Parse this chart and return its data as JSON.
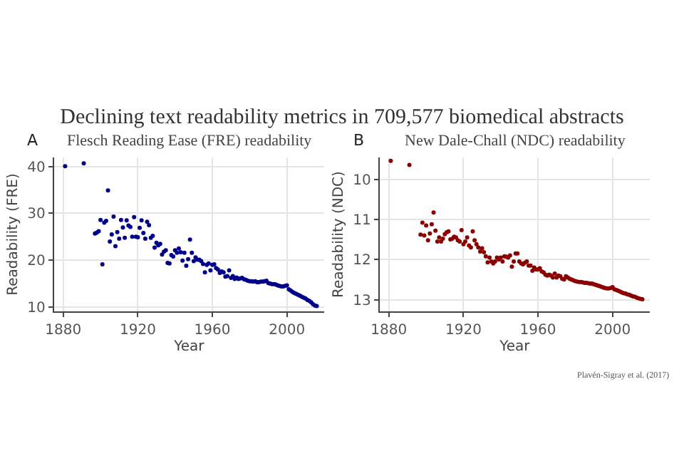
{
  "chart_data": [
    {
      "type": "scatter",
      "title": "Declining text readability metrics in 709,577 biomedical abstracts",
      "subtitle": "Flesch Reading Ease (FRE) readability",
      "xlabel": "Year",
      "ylabel": "Readability (FRE)",
      "annotations": [
        "A"
      ],
      "marker": "circle",
      "grid": true,
      "xlim": [
        1875,
        2020
      ],
      "xticks": [
        1880,
        1920,
        1960,
        2000
      ],
      "ylim": [
        9,
        42
      ],
      "yticks": [
        10,
        20,
        30,
        40
      ],
      "x": [
        1881,
        1891,
        1897,
        1898,
        1899,
        1900,
        1901,
        1902,
        1903,
        1904,
        1905,
        1906,
        1907,
        1908,
        1909,
        1910,
        1911,
        1912,
        1913,
        1914,
        1915,
        1916,
        1917,
        1918,
        1919,
        1920,
        1921,
        1922,
        1923,
        1924,
        1925,
        1926,
        1927,
        1928,
        1929,
        1930,
        1931,
        1932,
        1933,
        1934,
        1935,
        1936,
        1937,
        1938,
        1939,
        1940,
        1941,
        1942,
        1943,
        1944,
        1945,
        1946,
        1947,
        1948,
        1949,
        1950,
        1951,
        1952,
        1953,
        1954,
        1955,
        1956,
        1957,
        1958,
        1959,
        1960,
        1961,
        1962,
        1963,
        1964,
        1965,
        1966,
        1967,
        1968,
        1969,
        1970,
        1971,
        1972,
        1973,
        1974,
        1975,
        1976,
        1977,
        1978,
        1979,
        1980,
        1981,
        1982,
        1983,
        1984,
        1985,
        1986,
        1987,
        1988,
        1989,
        1990,
        1991,
        1992,
        1993,
        1994,
        1995,
        1996,
        1997,
        1998,
        1999,
        2000,
        2001,
        2002,
        2003,
        2004,
        2005,
        2006,
        2007,
        2008,
        2009,
        2010,
        2011,
        2012,
        2013,
        2014,
        2015,
        2016
      ],
      "series": [
        {
          "color": "#00008b",
          "values": [
            40.1,
            40.7,
            25.7,
            25.9,
            26.2,
            28.6,
            19.1,
            28.0,
            28.4,
            34.9,
            24.0,
            25.5,
            29.3,
            23.0,
            26.0,
            24.6,
            28.6,
            27.0,
            24.8,
            28.5,
            27.4,
            27.1,
            25.0,
            29.2,
            25.0,
            24.9,
            26.9,
            28.5,
            25.8,
            24.6,
            28.2,
            27.5,
            24.8,
            25.2,
            22.7,
            23.7,
            23.2,
            23.5,
            21.2,
            21.8,
            22.1,
            19.4,
            19.3,
            21.1,
            20.8,
            22.1,
            21.6,
            22.5,
            21.7,
            19.9,
            21.6,
            18.8,
            20.2,
            24.4,
            21.6,
            19.8,
            20.6,
            20.1,
            20.1,
            19.8,
            19.2,
            17.4,
            19.0,
            19.3,
            17.8,
            19.0,
            19.1,
            18.3,
            18.0,
            17.3,
            17.6,
            17.4,
            16.5,
            16.6,
            17.8,
            16.2,
            16.6,
            16.0,
            16.3,
            16.0,
            16.1,
            16.2,
            15.9,
            15.8,
            15.6,
            15.5,
            15.5,
            15.4,
            15.5,
            15.3,
            15.3,
            15.4,
            15.4,
            15.5,
            15.6,
            15.1,
            15.0,
            14.9,
            14.9,
            14.8,
            14.6,
            14.5,
            14.4,
            14.4,
            14.5,
            14.6,
            13.8,
            13.5,
            13.2,
            13.0,
            12.8,
            12.6,
            12.4,
            12.2,
            12.0,
            11.8,
            11.5,
            11.3,
            11.0,
            10.6,
            10.3,
            10.2
          ]
        }
      ]
    },
    {
      "type": "scatter",
      "subtitle": "New Dale-Chall (NDC) readability",
      "xlabel": "Year",
      "ylabel": "Readability (NDC)",
      "annotations": [
        "B",
        "Plavén-Sigray et al. (2017)"
      ],
      "marker": "circle",
      "grid": true,
      "xlim": [
        1875,
        2020
      ],
      "xticks": [
        1880,
        1920,
        1960,
        2000
      ],
      "ylim": [
        13.3,
        9.45
      ],
      "yticks": [
        10,
        11,
        12,
        13
      ],
      "x": [
        1881,
        1891,
        1897,
        1898,
        1899,
        1900,
        1901,
        1902,
        1903,
        1904,
        1905,
        1906,
        1907,
        1908,
        1909,
        1910,
        1911,
        1912,
        1913,
        1914,
        1915,
        1916,
        1917,
        1918,
        1919,
        1920,
        1921,
        1922,
        1923,
        1924,
        1925,
        1926,
        1927,
        1928,
        1929,
        1930,
        1931,
        1932,
        1933,
        1934,
        1935,
        1936,
        1937,
        1938,
        1939,
        1940,
        1941,
        1942,
        1943,
        1944,
        1945,
        1946,
        1947,
        1948,
        1949,
        1950,
        1951,
        1952,
        1953,
        1954,
        1955,
        1956,
        1957,
        1958,
        1959,
        1960,
        1961,
        1962,
        1963,
        1964,
        1965,
        1966,
        1967,
        1968,
        1969,
        1970,
        1971,
        1972,
        1973,
        1974,
        1975,
        1976,
        1977,
        1978,
        1979,
        1980,
        1981,
        1982,
        1983,
        1984,
        1985,
        1986,
        1987,
        1988,
        1989,
        1990,
        1991,
        1992,
        1993,
        1994,
        1995,
        1996,
        1997,
        1998,
        1999,
        2000,
        2001,
        2002,
        2003,
        2004,
        2005,
        2006,
        2007,
        2008,
        2009,
        2010,
        2011,
        2012,
        2013,
        2014,
        2015,
        2016
      ],
      "series": [
        {
          "color": "#8b0000",
          "values": [
            9.54,
            9.64,
            11.38,
            11.08,
            11.4,
            11.15,
            11.52,
            11.35,
            11.12,
            10.83,
            11.28,
            11.55,
            11.45,
            11.55,
            11.48,
            11.37,
            11.32,
            11.3,
            11.5,
            11.48,
            11.43,
            11.45,
            11.52,
            11.55,
            11.27,
            11.62,
            11.55,
            11.45,
            11.65,
            11.7,
            11.3,
            11.52,
            11.62,
            11.7,
            11.8,
            11.72,
            11.82,
            11.92,
            12.07,
            11.95,
            12.05,
            12.1,
            12.05,
            11.95,
            12.0,
            11.95,
            12.05,
            11.92,
            11.93,
            11.95,
            11.9,
            12.18,
            12.05,
            11.85,
            11.85,
            12.05,
            12.1,
            12.12,
            12.08,
            12.05,
            12.15,
            12.15,
            12.28,
            12.2,
            12.25,
            12.25,
            12.22,
            12.3,
            12.32,
            12.38,
            12.4,
            12.38,
            12.4,
            12.45,
            12.35,
            12.45,
            12.4,
            12.42,
            12.48,
            12.5,
            12.42,
            12.45,
            12.48,
            12.5,
            12.52,
            12.54,
            12.55,
            12.56,
            12.56,
            12.57,
            12.58,
            12.58,
            12.59,
            12.6,
            12.6,
            12.62,
            12.63,
            12.65,
            12.66,
            12.68,
            12.7,
            12.71,
            12.72,
            12.72,
            12.71,
            12.69,
            12.74,
            12.76,
            12.78,
            12.8,
            12.82,
            12.84,
            12.85,
            12.87,
            12.88,
            12.9,
            12.92,
            12.93,
            12.95,
            12.97,
            12.98,
            12.99
          ]
        }
      ]
    }
  ]
}
